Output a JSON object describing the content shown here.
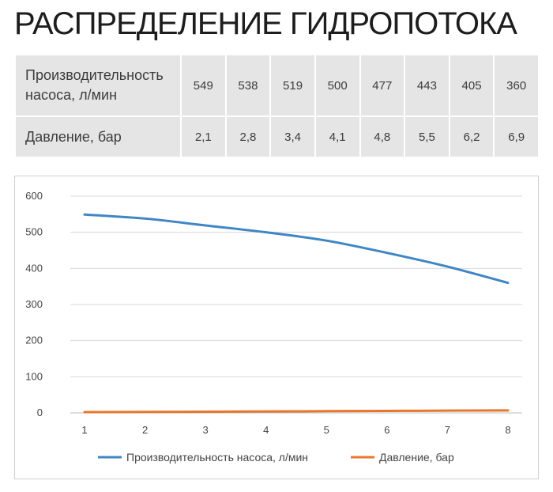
{
  "title": "РАСПРЕДЕЛЕНИЕ ГИДРОПОТОКА",
  "table": {
    "rows": [
      {
        "label_line1": "Производительность",
        "label_line2": "насоса, л/мин",
        "values": [
          "549",
          "538",
          "519",
          "500",
          "477",
          "443",
          "405",
          "360"
        ]
      },
      {
        "label_line1": "Давление, бар",
        "label_line2": "",
        "values": [
          "2,1",
          "2,8",
          "3,4",
          "4,1",
          "4,8",
          "5,5",
          "6,2",
          "6,9"
        ]
      }
    ]
  },
  "chart_data": {
    "type": "line",
    "x": [
      1,
      2,
      3,
      4,
      5,
      6,
      7,
      8
    ],
    "series": [
      {
        "name": "Производительность насоса, л/мин",
        "color": "#3f86c6",
        "values": [
          549,
          538,
          519,
          500,
          477,
          443,
          405,
          360
        ]
      },
      {
        "name": "Давление, бар",
        "color": "#e8762c",
        "values": [
          2.1,
          2.8,
          3.4,
          4.1,
          4.8,
          5.5,
          6.2,
          6.9
        ]
      }
    ],
    "yticks": [
      0,
      100,
      200,
      300,
      400,
      500,
      600
    ],
    "xticks": [
      1,
      2,
      3,
      4,
      5,
      6,
      7,
      8
    ],
    "ylim": [
      0,
      600
    ],
    "grid": true,
    "legend": "bottom",
    "title": "",
    "xlabel": "",
    "ylabel": ""
  }
}
